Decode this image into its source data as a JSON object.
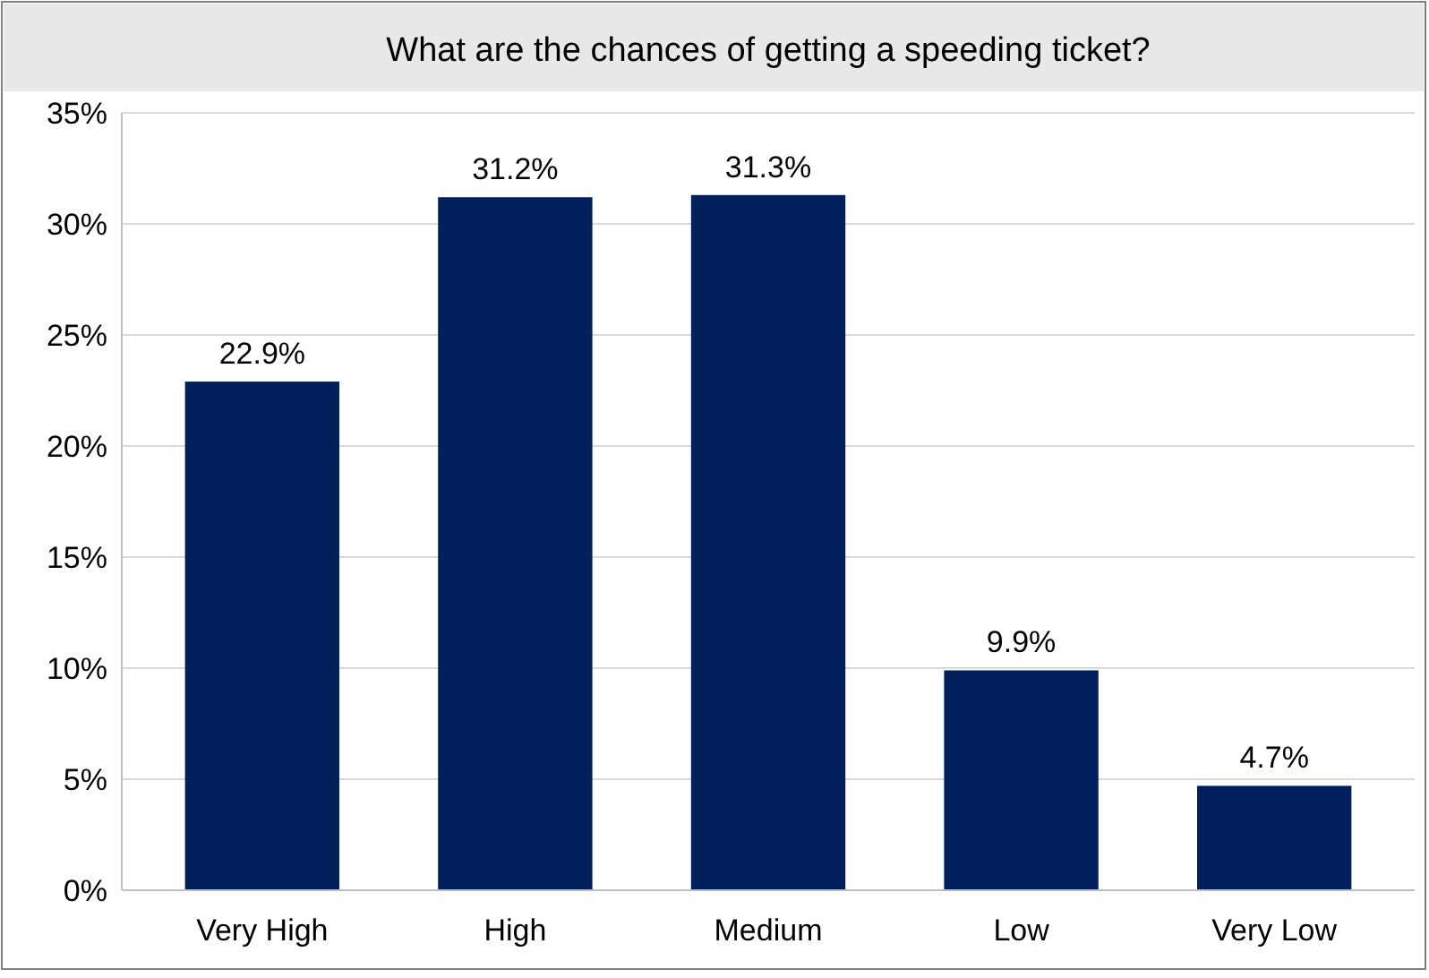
{
  "chart_data": {
    "type": "bar",
    "title": "What are the chances of getting a speeding ticket?",
    "categories": [
      "Very High",
      "High",
      "Medium",
      "Low",
      "Very Low"
    ],
    "values": [
      22.9,
      31.2,
      31.3,
      9.9,
      4.7
    ],
    "value_labels": [
      "22.9%",
      "31.2%",
      "31.3%",
      "9.9%",
      "4.7%"
    ],
    "color": "#001f5b",
    "ylim": [
      0,
      35
    ],
    "yticks": [
      {
        "value": 0,
        "label": "0%"
      },
      {
        "value": 5,
        "label": "5%"
      },
      {
        "value": 10,
        "label": "10%"
      },
      {
        "value": 15,
        "label": "15%"
      },
      {
        "value": 20,
        "label": "20%"
      },
      {
        "value": 25,
        "label": "25%"
      },
      {
        "value": 30,
        "label": "30%"
      },
      {
        "value": 35,
        "label": "35%"
      }
    ],
    "grid": true
  }
}
